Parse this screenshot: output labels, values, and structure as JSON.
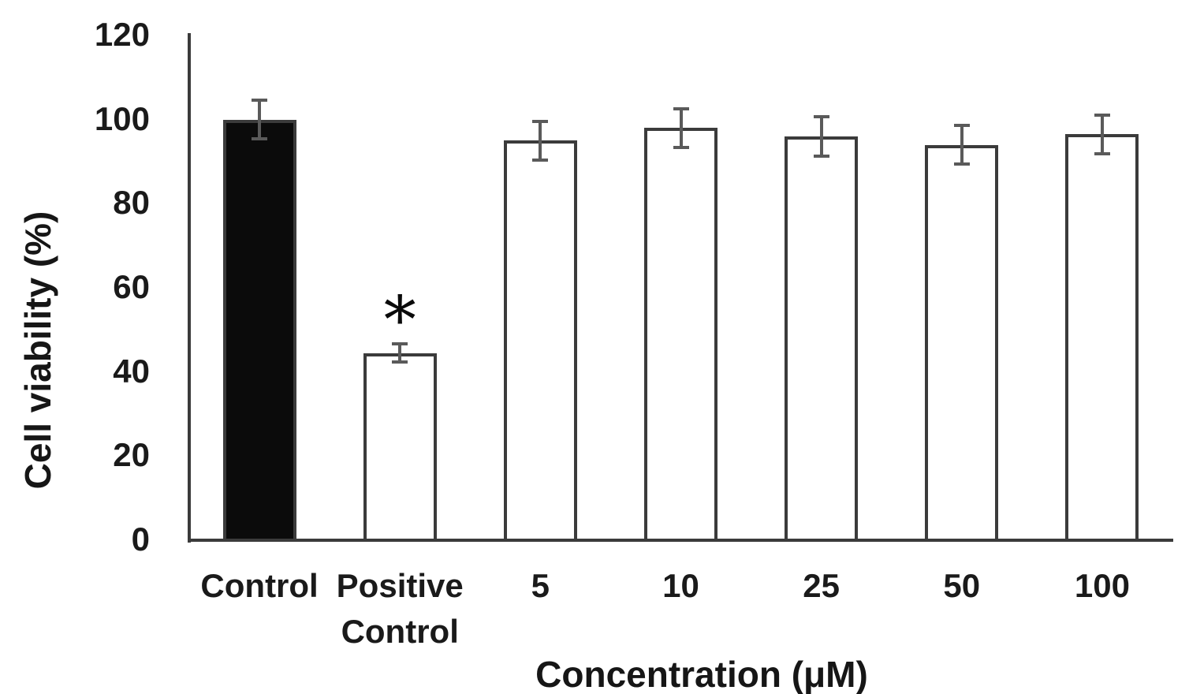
{
  "chart_data": {
    "type": "bar",
    "title": "",
    "xlabel": "Concentration (μM)",
    "ylabel": "Cell viability (%)",
    "ylim": [
      0,
      120
    ],
    "yticks": [
      0,
      20,
      40,
      60,
      80,
      100,
      120
    ],
    "grid": false,
    "legend": "none",
    "categories": [
      "Control",
      "Positive Control",
      "5",
      "10",
      "25",
      "50",
      "100"
    ],
    "values": [
      100,
      44.5,
      95,
      98,
      96,
      94,
      96.5
    ],
    "error_bars": [
      5,
      2.5,
      5,
      5,
      5,
      5,
      5
    ],
    "bar_fills": [
      "#0b0b0b",
      "#ffffff",
      "#ffffff",
      "#ffffff",
      "#ffffff",
      "#ffffff",
      "#ffffff"
    ],
    "annotations": [
      {
        "text": "*",
        "category_index": 1,
        "position": "above-error-bar"
      }
    ],
    "colors": {
      "bar_border": "#3b3b3b",
      "axis": "#3b3b3b",
      "error_bar": "#5a5a5a",
      "text": "#1a1a1a",
      "background": "#ffffff"
    }
  }
}
